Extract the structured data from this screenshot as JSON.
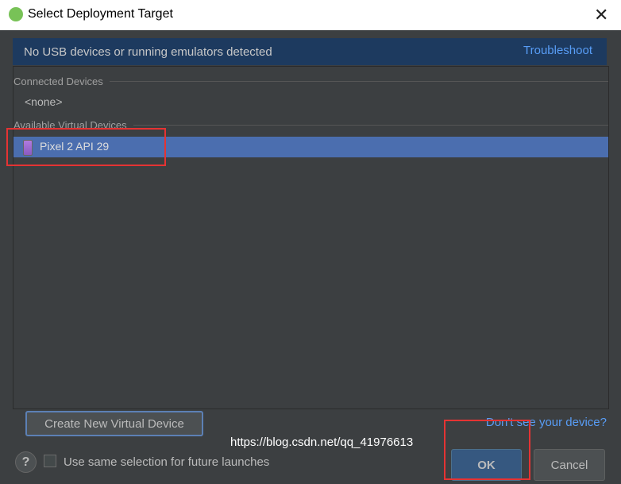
{
  "window": {
    "title": "Select Deployment Target",
    "icon": "android-studio-logo",
    "close_icon": "close-icon"
  },
  "banner": {
    "text": "No USB devices or running emulators detected",
    "link": "Troubleshoot"
  },
  "connected": {
    "header": "Connected Devices",
    "empty": "<none>"
  },
  "virtual": {
    "header": "Available Virtual Devices",
    "devices": [
      {
        "label": "Pixel 2 API 29",
        "icon": "phone-icon",
        "selected": true
      }
    ]
  },
  "actions": {
    "create": "Create New Virtual Device",
    "dont_see": "Don't see your device?",
    "help": "?",
    "remember": "Use same selection for future launches",
    "remember_checked": false,
    "ok": "OK",
    "cancel": "Cancel"
  },
  "watermark": "https://blog.csdn.net/qq_41976613",
  "colors": {
    "background": "#3c3f41",
    "selection": "#4b6eaf",
    "link": "#589df6",
    "highlight": "#e53333"
  }
}
